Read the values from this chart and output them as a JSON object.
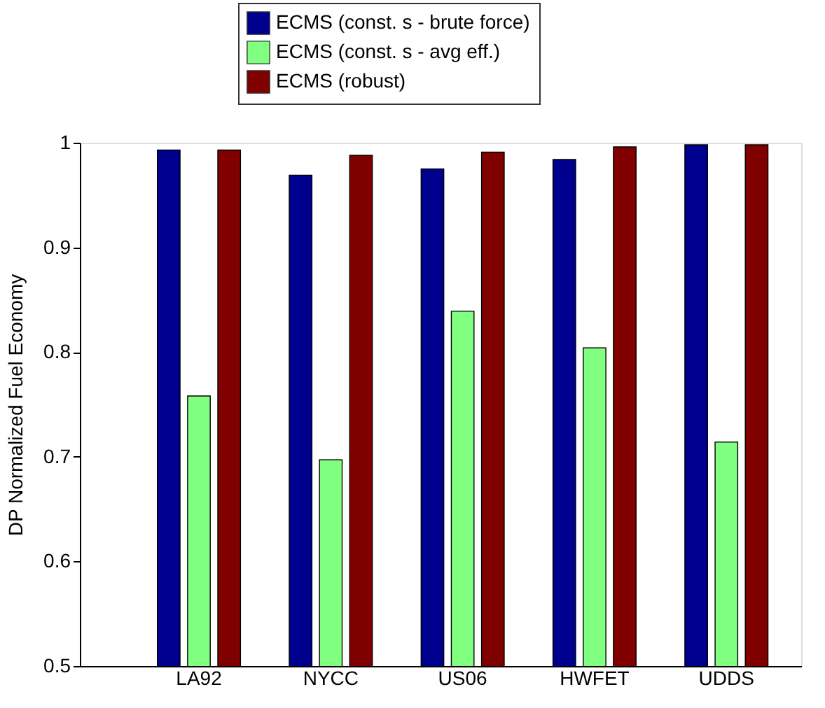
{
  "chart_data": {
    "type": "bar",
    "ylabel": "DP Normalized Fuel Economy",
    "categories": [
      "LA92",
      "NYCC",
      "US06",
      "HWFET",
      "UDDS"
    ],
    "series": [
      {
        "name": "ECMS (const. s - brute force)",
        "color": "#00008f",
        "values": [
          0.993,
          0.969,
          0.975,
          0.984,
          0.998
        ]
      },
      {
        "name": "ECMS (const. s - avg eff.)",
        "color": "#80ff80",
        "values": [
          0.758,
          0.697,
          0.839,
          0.804,
          0.714
        ]
      },
      {
        "name": "ECMS (robust)",
        "color": "#800000",
        "values": [
          0.993,
          0.988,
          0.991,
          0.996,
          0.998
        ]
      }
    ],
    "ylim": [
      0.5,
      1
    ],
    "yticks": [
      0.5,
      0.6,
      0.7,
      0.8,
      0.9,
      1
    ],
    "grid": false,
    "legend": "top"
  }
}
